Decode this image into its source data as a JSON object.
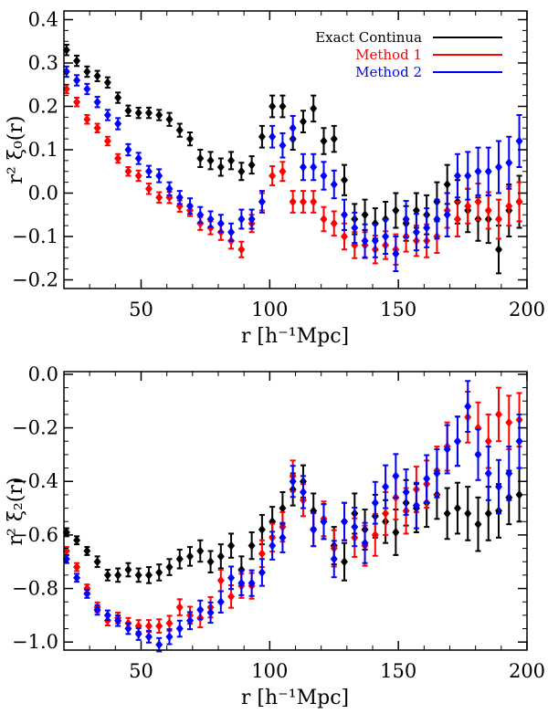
{
  "chart_data": [
    {
      "type": "scatter",
      "title": "",
      "xlabel": "r [h⁻¹Mpc]",
      "ylabel": "r² ξ₀(r)",
      "xlim": [
        20,
        200
      ],
      "ylim": [
        -0.22,
        0.42
      ],
      "xticks": [
        50,
        100,
        150,
        200
      ],
      "xtick_labels": [
        "50",
        "100",
        "150",
        "200"
      ],
      "yticks": [
        -0.2,
        -0.1,
        0.0,
        0.1,
        0.2,
        0.3,
        0.4
      ],
      "ytick_labels": [
        "−0.2",
        "−0.1",
        "0.0",
        "0.1",
        "0.2",
        "0.3",
        "0.4"
      ],
      "legend_position": "top-right",
      "series": [
        {
          "name": "Exact Continua",
          "color": "#000000",
          "x": [
            21,
            25,
            29,
            33,
            37,
            41,
            45,
            49,
            53,
            57,
            61,
            65,
            69,
            73,
            77,
            81,
            85,
            89,
            93,
            97,
            101,
            105,
            109,
            113,
            117,
            121,
            125,
            129,
            133,
            137,
            141,
            145,
            149,
            153,
            157,
            161,
            165,
            169,
            173,
            177,
            181,
            185,
            189,
            193,
            197
          ],
          "y": [
            0.33,
            0.305,
            0.28,
            0.27,
            0.255,
            0.22,
            0.19,
            0.185,
            0.185,
            0.18,
            0.17,
            0.145,
            0.125,
            0.08,
            0.075,
            0.06,
            0.075,
            0.05,
            0.065,
            0.13,
            0.2,
            0.2,
            0.125,
            0.165,
            0.195,
            0.12,
            0.125,
            0.03,
            -0.06,
            -0.05,
            -0.07,
            -0.06,
            -0.04,
            -0.07,
            -0.04,
            -0.05,
            -0.02,
            0.02,
            -0.02,
            -0.04,
            -0.06,
            -0.06,
            -0.13,
            -0.04,
            -0.02
          ],
          "err": [
            0.012,
            0.012,
            0.012,
            0.012,
            0.012,
            0.012,
            0.012,
            0.012,
            0.012,
            0.012,
            0.015,
            0.015,
            0.015,
            0.02,
            0.02,
            0.02,
            0.02,
            0.02,
            0.02,
            0.025,
            0.025,
            0.025,
            0.025,
            0.025,
            0.03,
            0.03,
            0.03,
            0.035,
            0.035,
            0.035,
            0.035,
            0.04,
            0.04,
            0.04,
            0.04,
            0.045,
            0.045,
            0.045,
            0.05,
            0.05,
            0.05,
            0.055,
            0.055,
            0.06,
            0.06
          ]
        },
        {
          "name": "Method 1",
          "color": "#ff0000",
          "x": [
            21,
            25,
            29,
            33,
            37,
            41,
            45,
            49,
            53,
            57,
            61,
            65,
            69,
            73,
            77,
            81,
            85,
            89,
            93,
            97,
            101,
            105,
            109,
            113,
            117,
            121,
            125,
            129,
            133,
            137,
            141,
            145,
            149,
            153,
            157,
            161,
            165,
            169,
            173,
            177,
            181,
            185,
            189,
            193,
            197
          ],
          "y": [
            0.24,
            0.21,
            0.17,
            0.15,
            0.12,
            0.08,
            0.05,
            0.04,
            0.01,
            -0.01,
            -0.01,
            -0.03,
            -0.04,
            -0.07,
            -0.08,
            -0.09,
            -0.11,
            -0.13,
            -0.07,
            -0.02,
            0.04,
            0.05,
            -0.02,
            -0.02,
            -0.02,
            -0.06,
            -0.07,
            -0.1,
            -0.12,
            -0.12,
            -0.13,
            -0.12,
            -0.13,
            -0.1,
            -0.11,
            -0.11,
            -0.1,
            -0.04,
            -0.06,
            -0.03,
            -0.02,
            -0.04,
            -0.06,
            -0.03,
            -0.02
          ],
          "err": [
            0.01,
            0.01,
            0.01,
            0.01,
            0.01,
            0.01,
            0.01,
            0.012,
            0.012,
            0.012,
            0.013,
            0.013,
            0.013,
            0.015,
            0.015,
            0.018,
            0.018,
            0.018,
            0.02,
            0.02,
            0.022,
            0.022,
            0.025,
            0.025,
            0.025,
            0.028,
            0.028,
            0.03,
            0.03,
            0.03,
            0.032,
            0.032,
            0.035,
            0.035,
            0.035,
            0.038,
            0.038,
            0.04,
            0.04,
            0.04,
            0.042,
            0.042,
            0.045,
            0.045,
            0.045
          ]
        },
        {
          "name": "Method 2",
          "color": "#0000ff",
          "x": [
            21,
            25,
            29,
            33,
            37,
            41,
            45,
            49,
            53,
            57,
            61,
            65,
            69,
            73,
            77,
            81,
            85,
            89,
            93,
            97,
            101,
            105,
            109,
            113,
            117,
            121,
            125,
            129,
            133,
            137,
            141,
            145,
            149,
            153,
            157,
            161,
            165,
            169,
            173,
            177,
            181,
            185,
            189,
            193,
            197
          ],
          "y": [
            0.28,
            0.26,
            0.24,
            0.21,
            0.18,
            0.16,
            0.1,
            0.08,
            0.05,
            0.04,
            0.01,
            -0.01,
            -0.03,
            -0.05,
            -0.06,
            -0.07,
            -0.09,
            -0.06,
            -0.06,
            -0.02,
            0.13,
            0.11,
            0.15,
            0.06,
            0.06,
            0.04,
            0.02,
            -0.05,
            -0.08,
            -0.11,
            -0.11,
            -0.1,
            -0.14,
            -0.06,
            -0.09,
            -0.08,
            -0.06,
            -0.05,
            0.04,
            0.04,
            0.05,
            0.05,
            0.06,
            0.07,
            0.12
          ],
          "err": [
            0.012,
            0.012,
            0.012,
            0.012,
            0.012,
            0.013,
            0.013,
            0.013,
            0.013,
            0.015,
            0.015,
            0.015,
            0.018,
            0.018,
            0.018,
            0.02,
            0.02,
            0.022,
            0.022,
            0.025,
            0.025,
            0.028,
            0.028,
            0.03,
            0.03,
            0.032,
            0.032,
            0.035,
            0.035,
            0.038,
            0.038,
            0.04,
            0.04,
            0.042,
            0.042,
            0.045,
            0.045,
            0.05,
            0.05,
            0.055,
            0.055,
            0.055,
            0.06,
            0.06,
            0.06
          ]
        }
      ]
    },
    {
      "type": "scatter",
      "title": "",
      "xlabel": "r [h⁻¹Mpc]",
      "ylabel": "r² ξ₂(r)",
      "xlim": [
        20,
        200
      ],
      "ylim": [
        -1.03,
        0.01
      ],
      "xticks": [
        50,
        100,
        150,
        200
      ],
      "xtick_labels": [
        "50",
        "100",
        "150",
        "200"
      ],
      "yticks": [
        -1.0,
        -0.8,
        -0.6,
        -0.4,
        -0.2,
        0.0
      ],
      "ytick_labels": [
        "−1.0",
        "−0.8",
        "−0.6",
        "−0.4",
        "−0.2",
        "0.0"
      ],
      "series": [
        {
          "name": "Exact Continua",
          "color": "#000000",
          "x": [
            21,
            25,
            29,
            33,
            37,
            41,
            45,
            49,
            53,
            57,
            61,
            65,
            69,
            73,
            77,
            81,
            85,
            89,
            93,
            97,
            101,
            105,
            109,
            113,
            117,
            121,
            125,
            129,
            133,
            137,
            141,
            145,
            149,
            153,
            157,
            161,
            165,
            169,
            173,
            177,
            181,
            185,
            189,
            193,
            197
          ],
          "y": [
            -0.59,
            -0.62,
            -0.66,
            -0.7,
            -0.75,
            -0.75,
            -0.73,
            -0.75,
            -0.75,
            -0.74,
            -0.72,
            -0.69,
            -0.68,
            -0.66,
            -0.7,
            -0.68,
            -0.64,
            -0.73,
            -0.64,
            -0.58,
            -0.55,
            -0.5,
            -0.43,
            -0.4,
            -0.51,
            -0.55,
            -0.64,
            -0.7,
            -0.52,
            -0.58,
            -0.53,
            -0.55,
            -0.59,
            -0.48,
            -0.5,
            -0.48,
            -0.45,
            -0.52,
            -0.5,
            -0.52,
            -0.56,
            -0.52,
            -0.51,
            -0.46,
            -0.45
          ],
          "err": [
            0.015,
            0.015,
            0.015,
            0.02,
            0.02,
            0.025,
            0.025,
            0.025,
            0.03,
            0.03,
            0.03,
            0.035,
            0.035,
            0.04,
            0.04,
            0.045,
            0.045,
            0.05,
            0.05,
            0.055,
            0.055,
            0.06,
            0.06,
            0.06,
            0.065,
            0.065,
            0.07,
            0.07,
            0.075,
            0.075,
            0.08,
            0.08,
            0.085,
            0.085,
            0.09,
            0.09,
            0.09,
            0.095,
            0.095,
            0.1,
            0.1,
            0.1,
            0.1,
            0.1,
            0.1
          ]
        },
        {
          "name": "Method 1",
          "color": "#ff0000",
          "x": [
            21,
            25,
            29,
            33,
            37,
            41,
            45,
            49,
            53,
            57,
            61,
            65,
            69,
            73,
            77,
            81,
            85,
            89,
            93,
            97,
            101,
            105,
            109,
            113,
            117,
            121,
            125,
            129,
            133,
            137,
            141,
            145,
            149,
            153,
            157,
            161,
            165,
            169,
            173,
            177,
            181,
            185,
            189,
            193,
            197
          ],
          "y": [
            -0.66,
            -0.72,
            -0.8,
            -0.87,
            -0.92,
            -0.91,
            -0.93,
            -0.94,
            -0.94,
            -0.94,
            -0.93,
            -0.87,
            -0.9,
            -0.91,
            -0.87,
            -0.77,
            -0.83,
            -0.79,
            -0.79,
            -0.67,
            -0.61,
            -0.57,
            -0.38,
            -0.47,
            -0.58,
            -0.54,
            -0.65,
            -0.55,
            -0.61,
            -0.64,
            -0.6,
            -0.52,
            -0.46,
            -0.51,
            -0.43,
            -0.41,
            -0.36,
            -0.27,
            -0.25,
            -0.16,
            -0.2,
            -0.25,
            -0.15,
            -0.18,
            -0.17
          ],
          "err": [
            0.015,
            0.015,
            0.015,
            0.018,
            0.018,
            0.02,
            0.02,
            0.022,
            0.022,
            0.025,
            0.028,
            0.03,
            0.032,
            0.035,
            0.038,
            0.04,
            0.042,
            0.045,
            0.048,
            0.05,
            0.052,
            0.055,
            0.058,
            0.06,
            0.062,
            0.065,
            0.068,
            0.07,
            0.072,
            0.075,
            0.078,
            0.08,
            0.082,
            0.085,
            0.085,
            0.088,
            0.09,
            0.09,
            0.092,
            0.095,
            0.095,
            0.1,
            0.1,
            0.1,
            0.1
          ]
        },
        {
          "name": "Method 2",
          "color": "#0000ff",
          "x": [
            21,
            25,
            29,
            33,
            37,
            41,
            45,
            49,
            53,
            57,
            61,
            65,
            69,
            73,
            77,
            81,
            85,
            89,
            93,
            97,
            101,
            105,
            109,
            113,
            117,
            121,
            125,
            129,
            133,
            137,
            141,
            145,
            149,
            153,
            157,
            161,
            165,
            169,
            173,
            177,
            181,
            185,
            189,
            193,
            197
          ],
          "y": [
            -0.69,
            -0.76,
            -0.82,
            -0.88,
            -0.9,
            -0.92,
            -0.95,
            -0.97,
            -0.98,
            -1.01,
            -0.98,
            -0.95,
            -0.92,
            -0.88,
            -0.89,
            -0.85,
            -0.76,
            -0.78,
            -0.78,
            -0.74,
            -0.64,
            -0.61,
            -0.4,
            -0.44,
            -0.58,
            -0.55,
            -0.69,
            -0.55,
            -0.57,
            -0.63,
            -0.48,
            -0.42,
            -0.38,
            -0.44,
            -0.49,
            -0.39,
            -0.37,
            -0.28,
            -0.25,
            -0.12,
            -0.3,
            -0.37,
            -0.42,
            -0.37,
            -0.25
          ],
          "err": [
            0.015,
            0.015,
            0.015,
            0.018,
            0.018,
            0.02,
            0.02,
            0.022,
            0.022,
            0.025,
            0.028,
            0.03,
            0.032,
            0.035,
            0.038,
            0.04,
            0.042,
            0.045,
            0.048,
            0.05,
            0.052,
            0.055,
            0.058,
            0.06,
            0.062,
            0.065,
            0.068,
            0.07,
            0.072,
            0.075,
            0.078,
            0.08,
            0.082,
            0.085,
            0.085,
            0.088,
            0.09,
            0.09,
            0.092,
            0.095,
            0.095,
            0.1,
            0.1,
            0.1,
            0.1
          ]
        }
      ]
    }
  ]
}
